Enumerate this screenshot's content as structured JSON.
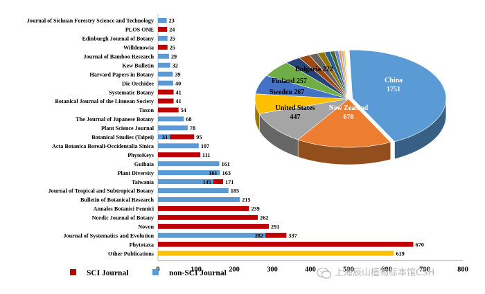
{
  "chart_data": [
    {
      "type": "bar",
      "orientation": "horizontal",
      "xlim": [
        0,
        800
      ],
      "x_ticks": [
        "0",
        "100",
        "200",
        "300",
        "400",
        "500",
        "600",
        "700",
        "800"
      ],
      "legend": {
        "position": "bottom-left",
        "items": [
          {
            "label": "SCI Journal",
            "color": "#c00000"
          },
          {
            "label": "non-SCI Journal",
            "color": "#5b9bd5"
          }
        ]
      },
      "bars": [
        {
          "category": "Journal of Sichuan Forestry Science and Technology",
          "value": 23,
          "type": "non-SCI",
          "label": "23"
        },
        {
          "category": "PLOS ONE",
          "value": 24,
          "type": "SCI",
          "label": "24"
        },
        {
          "category": "Edinburgh Journal of Botany",
          "value": 25,
          "type": "non-SCI",
          "label": "25"
        },
        {
          "category": "Willdenowia",
          "value": 25,
          "type": "SCI",
          "label": "25"
        },
        {
          "category": "Journal of Bamboo Research",
          "value": 29,
          "type": "non-SCI",
          "label": "29"
        },
        {
          "category": "Kew Bulletin",
          "value": 32,
          "type": "non-SCI",
          "label": "32"
        },
        {
          "category": "Harvard Papers in Botany",
          "value": 39,
          "type": "non-SCI",
          "label": "39"
        },
        {
          "category": "Die Orchidee",
          "value": 40,
          "type": "non-SCI",
          "label": "40"
        },
        {
          "category": "Systematic Botany",
          "value": 41,
          "type": "SCI",
          "label": "41"
        },
        {
          "category": "Botanical Journal of the Linnean Society",
          "value": 41,
          "type": "SCI",
          "label": "41"
        },
        {
          "category": "Taxon",
          "value": 54,
          "type": "SCI",
          "label": "54"
        },
        {
          "category": "The Journal of Japanese Botany",
          "value": 68,
          "type": "non-SCI",
          "label": "68"
        },
        {
          "category": "Plant Science Journal",
          "value": 78,
          "type": "non-SCI",
          "label": "78"
        },
        {
          "category": "Botanical Studies (Taipei)",
          "value": 95,
          "type": "SCI",
          "split": 31,
          "split_label": "31",
          "label": "95"
        },
        {
          "category": "Acta Botanica Boreali-Occidentalia Sinica",
          "value": 107,
          "type": "non-SCI",
          "label": "107"
        },
        {
          "category": "PhytoKeys",
          "value": 111,
          "type": "SCI",
          "label": "111"
        },
        {
          "category": "Guihaia",
          "value": 161,
          "type": "non-SCI",
          "label": "161"
        },
        {
          "category": "Plant Diversity",
          "value": 163,
          "type": "non-SCI",
          "split": 161,
          "split_label": "161",
          "label": "163"
        },
        {
          "category": "Taiwania",
          "value": 171,
          "type": "SCI",
          "split": 145,
          "split_label": "145",
          "label": "171"
        },
        {
          "category": "Journal of Tropical and Subtropical Botany",
          "value": 185,
          "type": "non-SCI",
          "label": "185"
        },
        {
          "category": "Bulletin of Botanical Research",
          "value": 215,
          "type": "non-SCI",
          "label": "215"
        },
        {
          "category": "Annales Botanici Fennici",
          "value": 239,
          "type": "SCI",
          "label": "239"
        },
        {
          "category": "Nordic Journal of Botany",
          "value": 262,
          "type": "SCI",
          "label": "262"
        },
        {
          "category": "Novon",
          "value": 291,
          "type": "SCI",
          "label": "291"
        },
        {
          "category": "Journal of Systematics and Evolution",
          "value": 337,
          "type": "SCI",
          "split": 282,
          "split_label": "282",
          "label": "337"
        },
        {
          "category": "Phytotaxa",
          "value": 670,
          "type": "SCI",
          "label": "670"
        },
        {
          "category": "Other Publications",
          "value": 619,
          "type": "other",
          "label": "619"
        }
      ],
      "colors": {
        "SCI": "#c00000",
        "non-SCI": "#5b9bd5",
        "other": "#ffc000"
      }
    },
    {
      "type": "pie",
      "style": "3d-exploded",
      "slices": [
        {
          "label": "China",
          "value": 1751,
          "value_label": "1751",
          "color": "#5b9bd5"
        },
        {
          "label": "New Zealand",
          "value": 670,
          "value_label": "670",
          "color": "#ed7d31"
        },
        {
          "label": "United States",
          "value": 447,
          "value_label": "447",
          "color": "#a5a5a5"
        },
        {
          "label": "Sweden",
          "value": 267,
          "value_label": "267",
          "color": "#ffc000"
        },
        {
          "label": "Finland",
          "value": 257,
          "value_label": "257",
          "color": "#4472c4"
        },
        {
          "label": "Bulgaria",
          "value": 222,
          "value_label": "222",
          "color": "#70ad47"
        },
        {
          "value": 110,
          "color": "#264478"
        },
        {
          "value": 78,
          "color": "#9e480e"
        },
        {
          "value": 62,
          "color": "#636363"
        },
        {
          "value": 50,
          "color": "#997300"
        },
        {
          "value": 40,
          "color": "#255e91"
        },
        {
          "value": 32,
          "color": "#43682b"
        },
        {
          "value": 26,
          "color": "#698ed0"
        },
        {
          "value": 20,
          "color": "#f1975a"
        },
        {
          "value": 16,
          "color": "#b7b7b7"
        },
        {
          "value": 12,
          "color": "#ffcd33"
        }
      ]
    }
  ],
  "watermark": {
    "text": "上海辰山植物标本馆CSH",
    "icon": "wechat-icon"
  }
}
